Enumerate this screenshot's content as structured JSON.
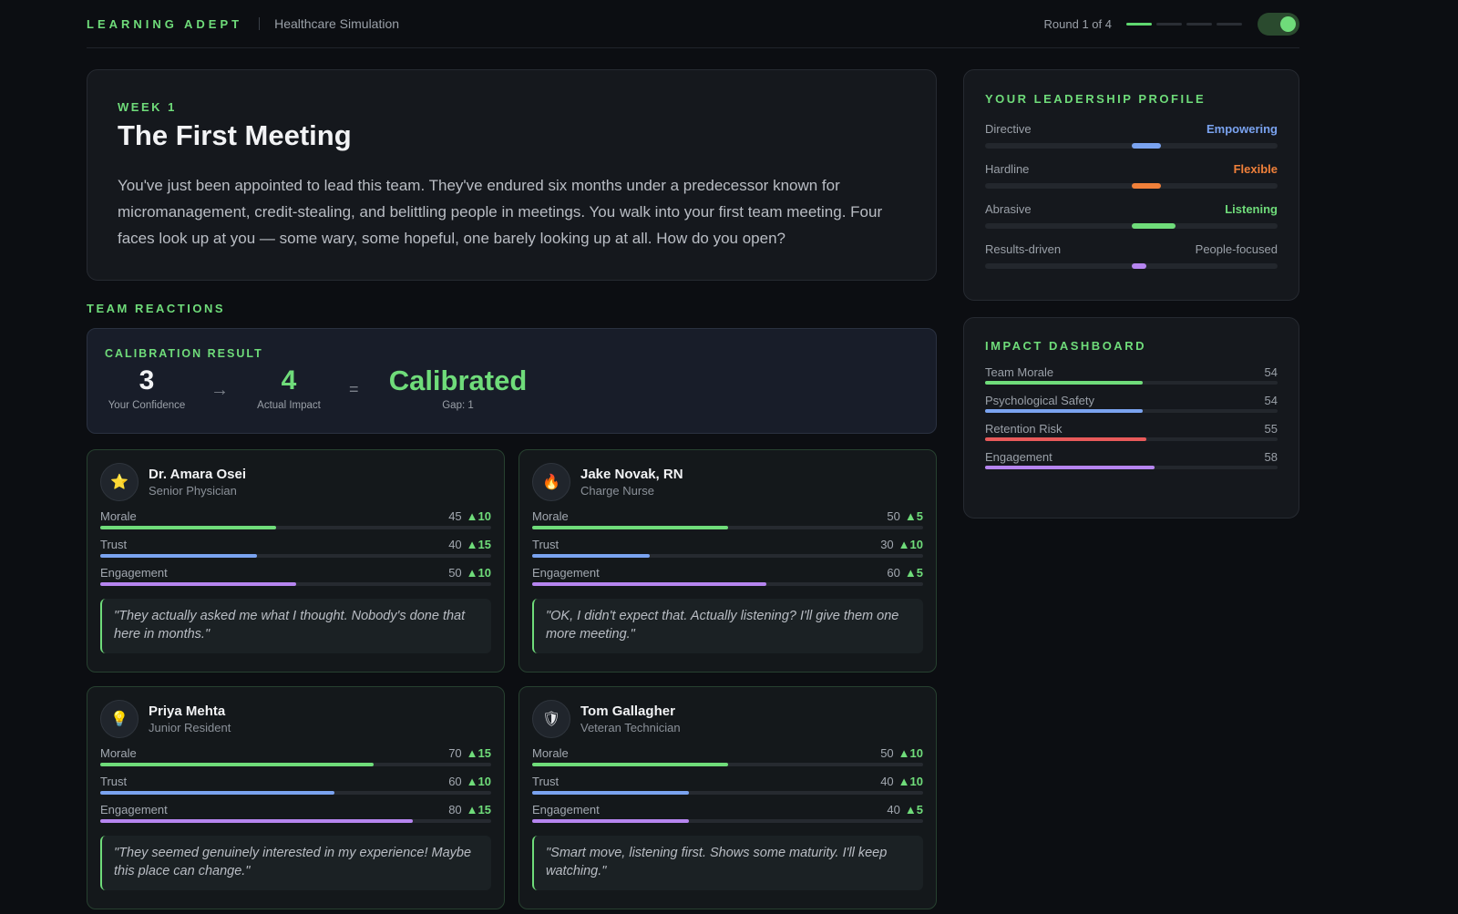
{
  "header": {
    "brand": "LEARNING ADEPT",
    "subtitle": "Healthcare Simulation",
    "round_text": "Round 1 of 4",
    "round_progress": [
      true,
      false,
      false,
      false
    ],
    "toggle_on": true
  },
  "scenario": {
    "week": "WEEK 1",
    "title": "The First Meeting",
    "body": "You've just been appointed to lead this team. They've endured six months under a predecessor known for micromanagement, credit-stealing, and belittling people in meetings. You walk into your first team meeting. Four faces look up at you — some wary, some hopeful, one barely looking up at all. How do you open?"
  },
  "team_reactions_label": "TEAM REACTIONS",
  "calibration": {
    "label": "CALIBRATION RESULT",
    "confidence": "3",
    "confidence_caption": "Your Confidence",
    "arrow": "→",
    "impact": "4",
    "impact_caption": "Actual Impact",
    "equals": "=",
    "result": "Calibrated",
    "gap": "Gap: 1"
  },
  "people": [
    {
      "name": "Dr. Amara Osei",
      "role": "Senior Physician",
      "icon": "star-icon",
      "glyph": "⭐",
      "metrics": [
        {
          "label": "Morale",
          "value": "45",
          "delta": "▲10",
          "pct": 45
        },
        {
          "label": "Trust",
          "value": "40",
          "delta": "▲15",
          "pct": 40
        },
        {
          "label": "Engagement",
          "value": "50",
          "delta": "▲10",
          "pct": 50
        }
      ],
      "quote": "\"They actually asked me what I thought. Nobody's done that here in months.\""
    },
    {
      "name": "Jake Novak, RN",
      "role": "Charge Nurse",
      "icon": "flame-icon",
      "glyph": "🔥",
      "metrics": [
        {
          "label": "Morale",
          "value": "50",
          "delta": "▲5",
          "pct": 50
        },
        {
          "label": "Trust",
          "value": "30",
          "delta": "▲10",
          "pct": 30
        },
        {
          "label": "Engagement",
          "value": "60",
          "delta": "▲5",
          "pct": 60
        }
      ],
      "quote": "\"OK, I didn't expect that. Actually listening? I'll give them one more meeting.\""
    },
    {
      "name": "Priya Mehta",
      "role": "Junior Resident",
      "icon": "lightbulb-icon",
      "glyph": "💡",
      "metrics": [
        {
          "label": "Morale",
          "value": "70",
          "delta": "▲15",
          "pct": 70
        },
        {
          "label": "Trust",
          "value": "60",
          "delta": "▲10",
          "pct": 60
        },
        {
          "label": "Engagement",
          "value": "80",
          "delta": "▲15",
          "pct": 80
        }
      ],
      "quote": "\"They seemed genuinely interested in my experience! Maybe this place can change.\""
    },
    {
      "name": "Tom Gallagher",
      "role": "Veteran Technician",
      "icon": "shield-icon",
      "glyph": "🛡",
      "metrics": [
        {
          "label": "Morale",
          "value": "50",
          "delta": "▲10",
          "pct": 50
        },
        {
          "label": "Trust",
          "value": "40",
          "delta": "▲10",
          "pct": 40
        },
        {
          "label": "Engagement",
          "value": "40",
          "delta": "▲5",
          "pct": 40
        }
      ],
      "quote": "\"Smart move, listening first. Shows some maturity. I'll keep watching.\""
    }
  ],
  "profile": {
    "title": "YOUR LEADERSHIP PROFILE",
    "rows": [
      {
        "left": "Directive",
        "right": "Empowering",
        "color": "#7aa3f0",
        "right_highlight": true,
        "from": 0.5,
        "to": 0.6
      },
      {
        "left": "Hardline",
        "right": "Flexible",
        "color": "#f0803a",
        "right_highlight": true,
        "from": 0.5,
        "to": 0.6
      },
      {
        "left": "Abrasive",
        "right": "Listening",
        "color": "#6fdc7a",
        "right_highlight": true,
        "from": 0.5,
        "to": 0.65
      },
      {
        "left": "Results-driven",
        "right": "People-focused",
        "color": "#b685f0",
        "right_highlight": false,
        "from": 0.5,
        "to": 0.55
      }
    ]
  },
  "impact": {
    "title": "IMPACT DASHBOARD",
    "rows": [
      {
        "label": "Team Morale",
        "value": "54",
        "pct": 54,
        "color": "#6fdc7a"
      },
      {
        "label": "Psychological Safety",
        "value": "54",
        "pct": 54,
        "color": "#7aa3f0"
      },
      {
        "label": "Retention Risk",
        "value": "55",
        "pct": 55,
        "color": "#e85a5a"
      },
      {
        "label": "Engagement",
        "value": "58",
        "pct": 58,
        "color": "#b685f0"
      }
    ]
  }
}
